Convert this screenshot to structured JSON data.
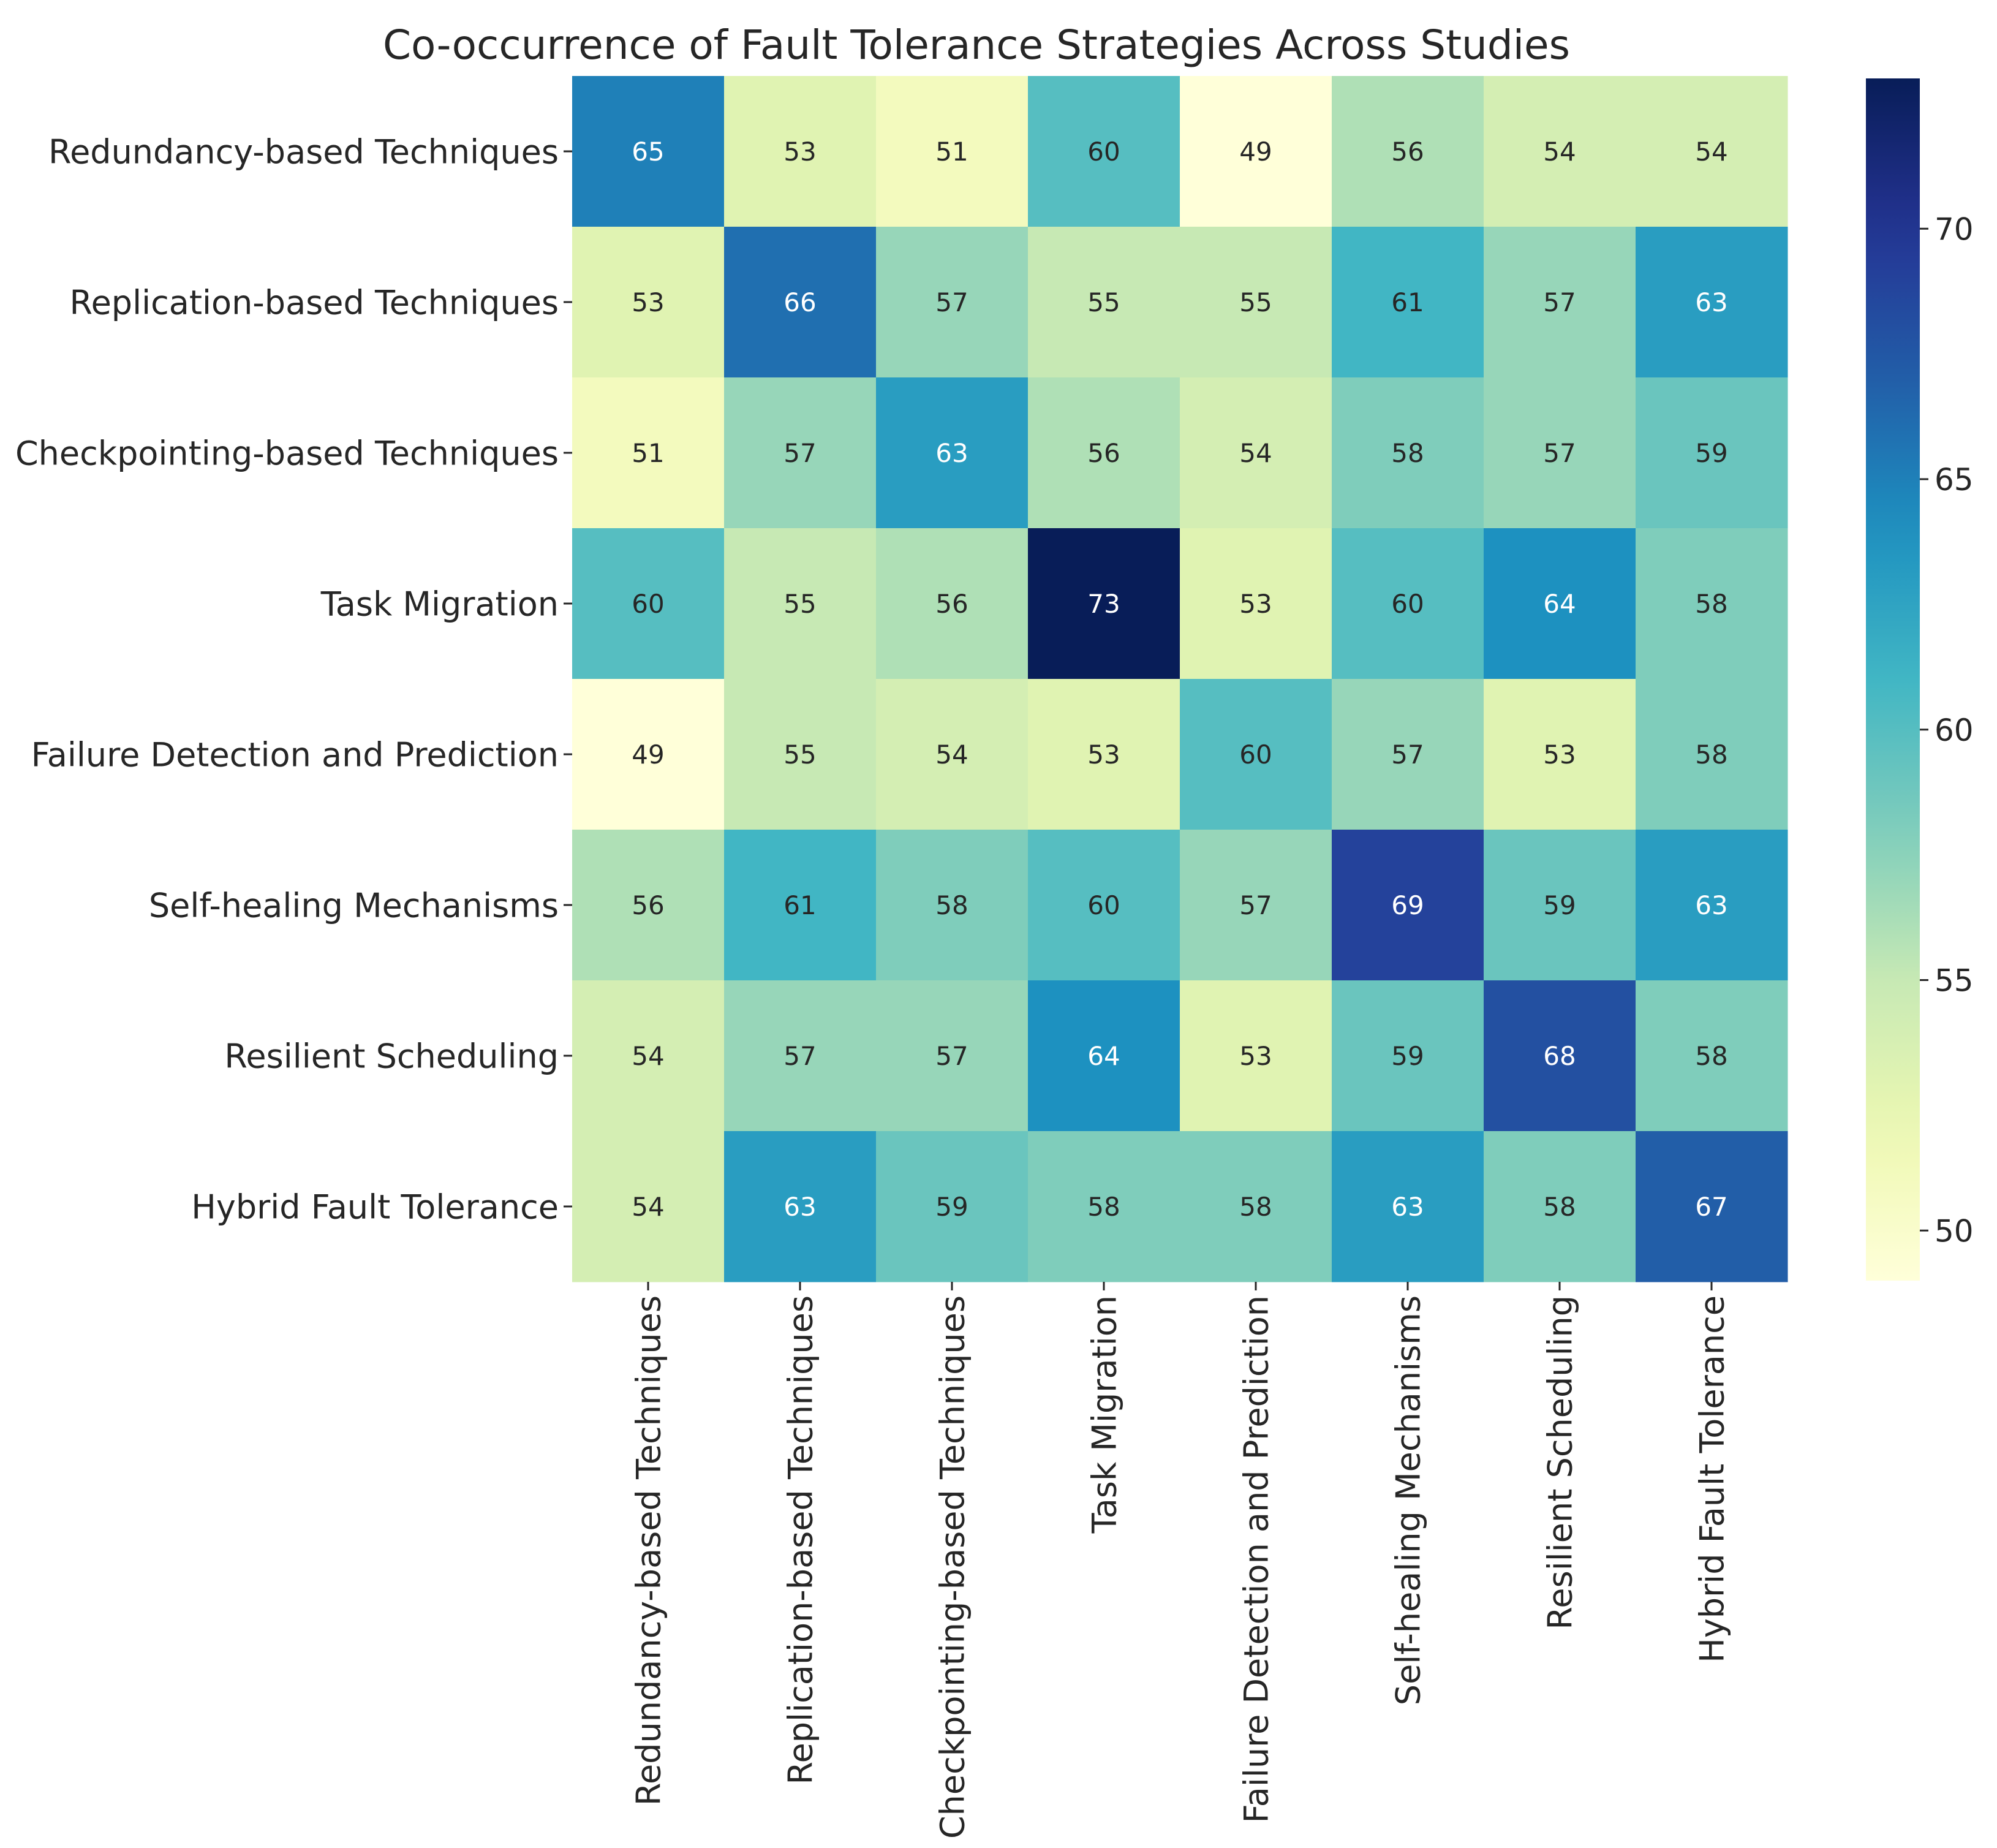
{
  "chart_data": {
    "type": "heatmap",
    "title": "Co-occurrence of Fault Tolerance Strategies Across Studies",
    "xlabel": "",
    "ylabel": "",
    "row_labels": [
      "Redundancy-based Techniques",
      "Replication-based Techniques",
      "Checkpointing-based Techniques",
      "Task Migration",
      "Failure Detection and Prediction",
      "Self-healing Mechanisms",
      "Resilient Scheduling",
      "Hybrid Fault Tolerance"
    ],
    "col_labels": [
      "Redundancy-based Techniques",
      "Replication-based Techniques",
      "Checkpointing-based Techniques",
      "Task Migration",
      "Failure Detection and Prediction",
      "Self-healing Mechanisms",
      "Resilient Scheduling",
      "Hybrid Fault Tolerance"
    ],
    "values": [
      [
        65,
        53,
        51,
        60,
        49,
        56,
        54,
        54
      ],
      [
        53,
        66,
        57,
        55,
        55,
        61,
        57,
        63
      ],
      [
        51,
        57,
        63,
        56,
        54,
        58,
        57,
        59
      ],
      [
        60,
        55,
        56,
        73,
        53,
        60,
        64,
        58
      ],
      [
        49,
        55,
        54,
        53,
        60,
        57,
        53,
        58
      ],
      [
        56,
        61,
        58,
        60,
        57,
        69,
        59,
        63
      ],
      [
        54,
        57,
        57,
        64,
        53,
        59,
        68,
        58
      ],
      [
        54,
        63,
        59,
        58,
        58,
        63,
        58,
        67
      ]
    ],
    "colormap": "YlGnBu",
    "vmin": 49,
    "vmax": 73,
    "colorbar": {
      "ticks": [
        50,
        55,
        60,
        65,
        70
      ],
      "tick_labels": [
        "50",
        "55",
        "60",
        "65",
        "70"
      ]
    },
    "annotations": true
  }
}
